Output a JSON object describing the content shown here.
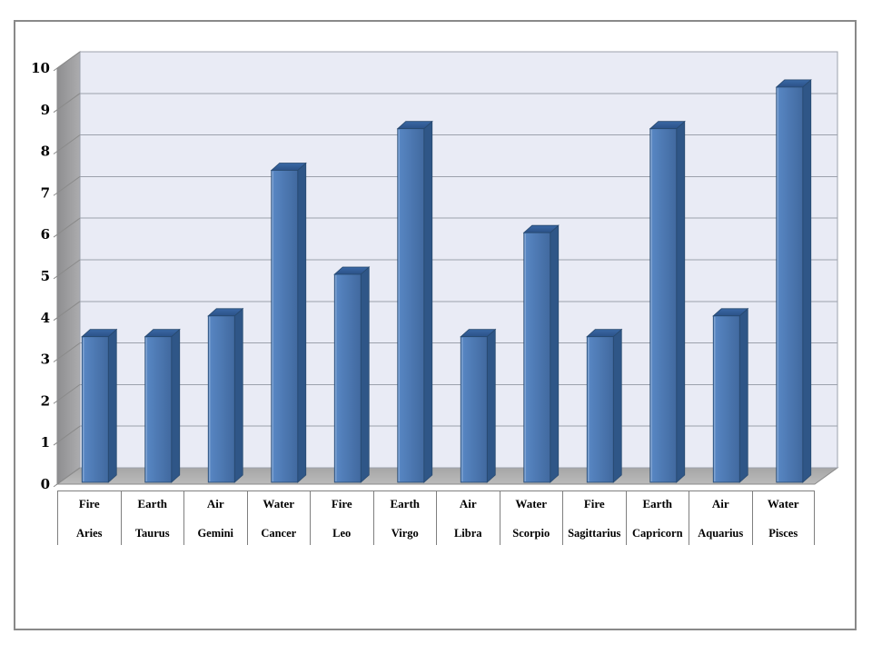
{
  "slide": {
    "background_color": "#FFFFFF",
    "border_color": "#898989"
  },
  "chart_data": {
    "type": "bar",
    "style": "3d-clustered-column",
    "title": "",
    "xlabel": "",
    "ylabel": "",
    "legend": false,
    "grid": true,
    "ylim": [
      0,
      10
    ],
    "y_ticks": [
      "0",
      "1",
      "2",
      "3",
      "4",
      "5",
      "6",
      "7",
      "8",
      "9",
      "10"
    ],
    "categories": [
      {
        "element": "Fire",
        "sign": "Aries"
      },
      {
        "element": "Earth",
        "sign": "Taurus"
      },
      {
        "element": "Air",
        "sign": "Gemini"
      },
      {
        "element": "Water",
        "sign": "Cancer"
      },
      {
        "element": "Fire",
        "sign": "Leo"
      },
      {
        "element": "Earth",
        "sign": "Virgo"
      },
      {
        "element": "Air",
        "sign": "Libra"
      },
      {
        "element": "Water",
        "sign": "Scorpio"
      },
      {
        "element": "Fire",
        "sign": "Sagittarius"
      },
      {
        "element": "Earth",
        "sign": "Capricorn"
      },
      {
        "element": "Air",
        "sign": "Aquarius"
      },
      {
        "element": "Water",
        "sign": "Pisces"
      }
    ],
    "values": [
      3.5,
      3.5,
      4,
      7.5,
      5,
      8.5,
      3.5,
      6,
      3.5,
      8.5,
      4,
      9.5
    ],
    "colors": {
      "bar_front_light": "#5988C5",
      "bar_front_dark": "#41699F",
      "bar_front_highlight": "#7FA3D1",
      "bar_side": "#2F5687",
      "bar_top_light": "#3A68A5",
      "bar_top_dark": "#2B5187",
      "bar_outline": "#27496F",
      "wall_fill": "#E9EBF5",
      "gridline": "#9CA1AC",
      "side_wall_dark": "#8E8E90",
      "side_wall_light": "#ACACAE",
      "floor_back": "#A6A6A6",
      "floor_front": "#BBBBBB",
      "edge_line": "#8A8A8A",
      "axis_text": "#000000",
      "table_line": "#7F7F7F"
    }
  }
}
